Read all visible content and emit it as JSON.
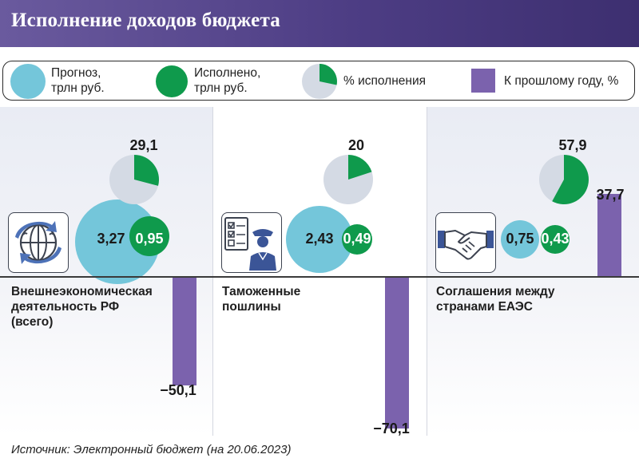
{
  "header": {
    "title": "Исполнение доходов бюджета"
  },
  "legend": {
    "forecast": {
      "line1": "Прогноз,",
      "line2": "трлн руб."
    },
    "executed": {
      "line1": "Исполнено,",
      "line2": "трлн руб."
    },
    "percent": {
      "label": "% исполнения"
    },
    "yoy": {
      "label": "К прошлому году, %"
    }
  },
  "colors": {
    "forecast": "#74c6da",
    "executed": "#0f9a4c",
    "pie_bg": "#d4dae4",
    "bar": "#7b62ad",
    "header": "#4d3d84"
  },
  "categories": [
    {
      "line1": "Внешнеэкономическая",
      "line2": "деятельность РФ",
      "line3": "(всего)",
      "icon": "globe-arrows-icon",
      "forecast_label": "3,27",
      "executed_label": "0,95",
      "pct_label": "29,1",
      "yoy_label": "−50,1"
    },
    {
      "line1": "Таможенные",
      "line2": "пошлины",
      "line3": "",
      "icon": "customs-officer-icon",
      "forecast_label": "2,43",
      "executed_label": "0,49",
      "pct_label": "20",
      "yoy_label": "−70,1"
    },
    {
      "line1": "Соглашения между",
      "line2": "странами ЕАЭС",
      "line3": "",
      "icon": "handshake-icon",
      "forecast_label": "0,75",
      "executed_label": "0,43",
      "pct_label": "57,9",
      "yoy_label": "37,7"
    }
  ],
  "chart_data": {
    "type": "bar",
    "title": "Исполнение доходов бюджета",
    "categories": [
      "Внешнеэкономическая деятельность РФ (всего)",
      "Таможенные пошлины",
      "Соглашения между странами ЕАЭС"
    ],
    "series": [
      {
        "name": "Прогноз, трлн руб.",
        "values": [
          3.27,
          2.43,
          0.75
        ]
      },
      {
        "name": "Исполнено, трлн руб.",
        "values": [
          0.95,
          0.49,
          0.43
        ]
      },
      {
        "name": "% исполнения",
        "values": [
          29.1,
          20,
          57.9
        ]
      },
      {
        "name": "К прошлому году, %",
        "values": [
          -50.1,
          -70.1,
          37.7
        ]
      }
    ]
  },
  "source": "Источник: Электронный бюджет (на 20.06.2023)"
}
